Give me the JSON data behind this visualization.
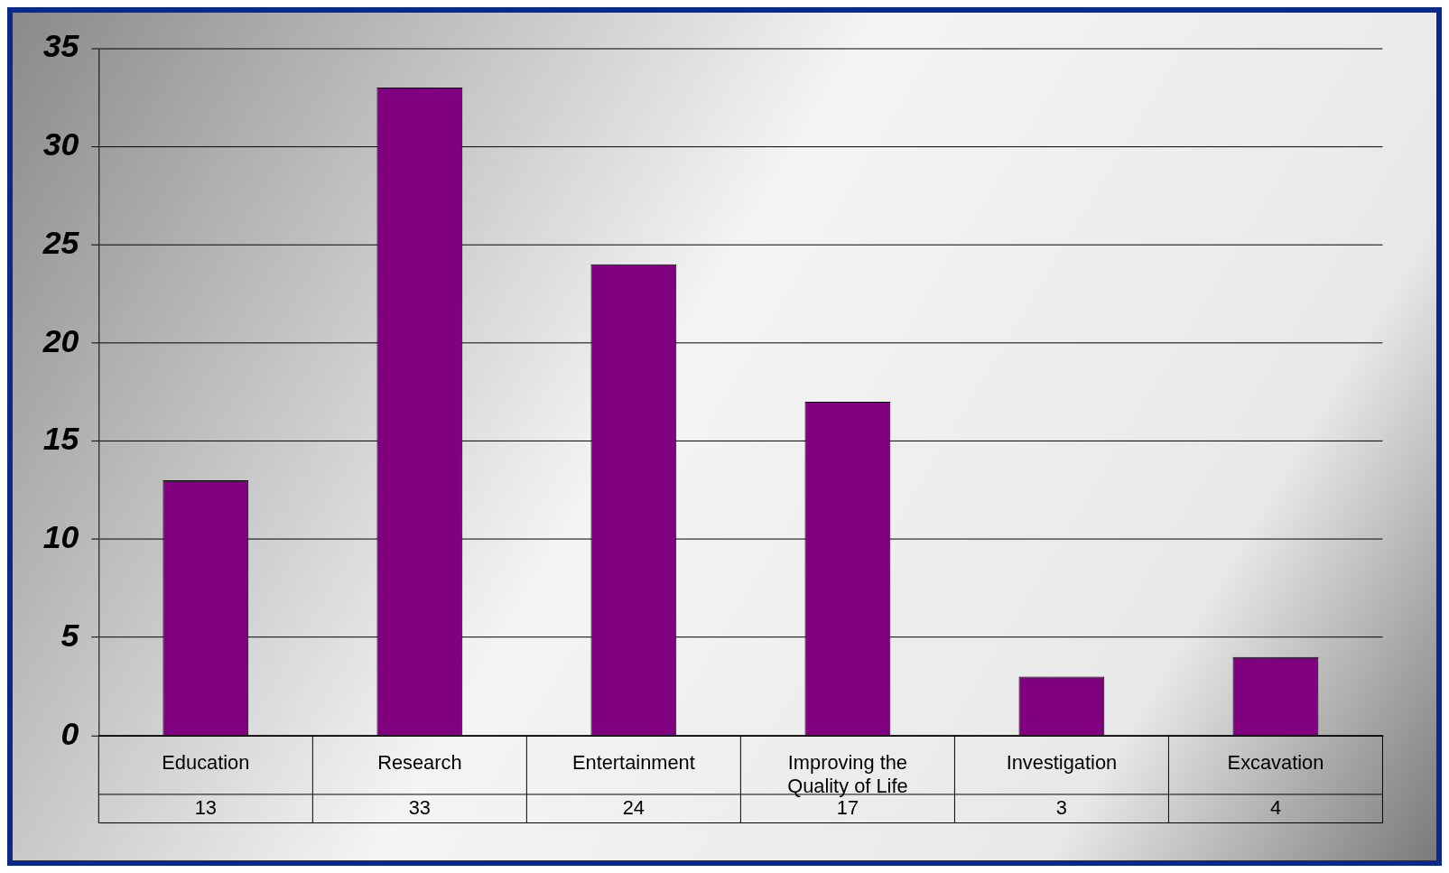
{
  "chart_data": {
    "type": "bar",
    "categories": [
      "Education",
      "Research",
      "Entertainment",
      "Improving the Quality of Life",
      "Investigation",
      "Excavation"
    ],
    "values": [
      13,
      33,
      24,
      17,
      3,
      4
    ],
    "color": "#800080",
    "ylim": [
      0,
      35
    ],
    "yticks": [
      0,
      5,
      10,
      15,
      20,
      25,
      30,
      35
    ],
    "grid": "y",
    "data_labels": true
  }
}
